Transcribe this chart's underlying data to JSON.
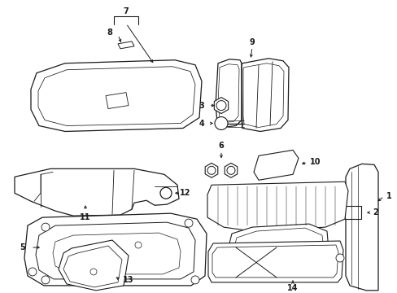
{
  "bg_color": "#ffffff",
  "lc": "#1a1a1a",
  "lw": 0.7,
  "figsize": [
    4.89,
    3.6
  ],
  "dpi": 100,
  "xlim": [
    0,
    489
  ],
  "ylim": [
    360,
    0
  ]
}
